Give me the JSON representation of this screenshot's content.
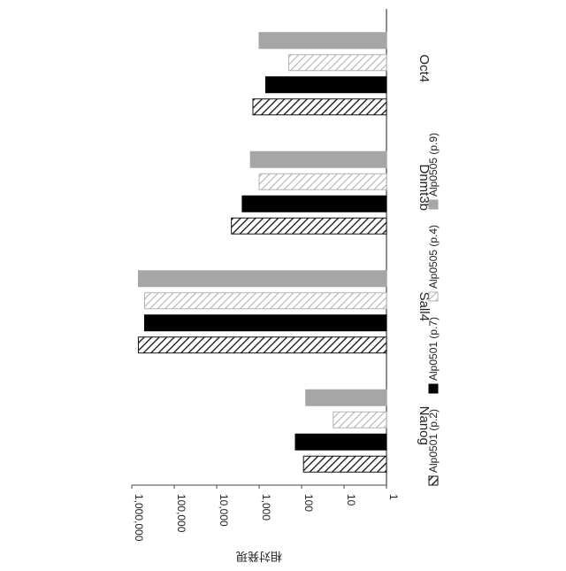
{
  "chart_data": {
    "type": "bar",
    "orientation": "rotated 90° clockwise (vertical bars on a log scale)",
    "ylabel": "相対発現",
    "yscale": "log",
    "ylim": [
      1,
      1000000
    ],
    "yticks": [
      "1",
      "10",
      "100",
      "1,000",
      "10,000",
      "100,000",
      "1,000,000"
    ],
    "categories": [
      "Nanog",
      "Sall4",
      "Dnmt3b",
      "Oct4"
    ],
    "series": [
      {
        "name": "Alp0501 (p.2)",
        "pattern": "hatched-dark",
        "color": "#000000",
        "values": [
          90,
          700000,
          4500,
          1400
        ]
      },
      {
        "name": "Alp0501 (p.7)",
        "pattern": "solid-black",
        "color": "#000000",
        "values": [
          140,
          500000,
          2500,
          700
        ]
      },
      {
        "name": "Alp0505 (p.4)",
        "pattern": "hatched-light",
        "color": "#bdbdbd",
        "values": [
          18,
          500000,
          1000,
          200
        ]
      },
      {
        "name": "Alp0505 (p.9)",
        "pattern": "solid-gray",
        "color": "#a6a6a6",
        "values": [
          80,
          700000,
          1600,
          1000
        ]
      }
    ],
    "legend_position": "bottom",
    "grid": false
  }
}
